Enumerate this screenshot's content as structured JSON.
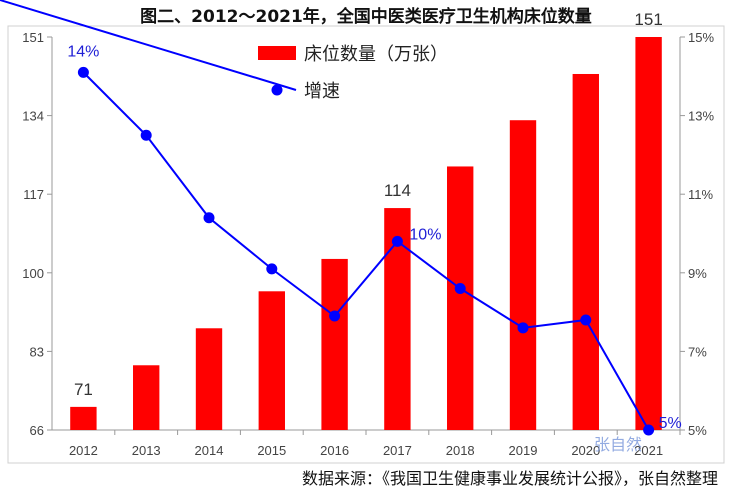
{
  "title": "图二、2012～2021年，全国中医类医疗卫生机构床位数量",
  "source": "数据来源：《我国卫生健康事业发展统计公报》，张自然整理",
  "watermark": "张自然",
  "colors": {
    "bar": "#ff0000",
    "line": "#0000ff",
    "axis": "#999999"
  },
  "chart_data": {
    "type": "bar+line",
    "categories": [
      "2012",
      "2013",
      "2014",
      "2015",
      "2016",
      "2017",
      "2018",
      "2019",
      "2020",
      "2021"
    ],
    "series": [
      {
        "name": "床位数量（万张）",
        "type": "bar",
        "axis": "left",
        "values": [
          71,
          80,
          88,
          96,
          103,
          114,
          123,
          133,
          143,
          151
        ]
      },
      {
        "name": "增速",
        "type": "line",
        "axis": "right",
        "marker": "circle",
        "values": [
          14.1,
          12.5,
          10.4,
          9.1,
          7.9,
          9.8,
          8.6,
          7.6,
          7.8,
          5.0
        ]
      }
    ],
    "y_left": {
      "min": 66,
      "max": 151,
      "ticks": [
        "66",
        "83",
        "100",
        "117",
        "134",
        "151"
      ]
    },
    "y_right": {
      "min": 5,
      "max": 15,
      "ticks": [
        "5%",
        "7%",
        "9%",
        "11%",
        "13%",
        "15%"
      ]
    },
    "data_labels": [
      {
        "series": 0,
        "index": 0,
        "text": "71"
      },
      {
        "series": 0,
        "index": 5,
        "text": "114"
      },
      {
        "series": 0,
        "index": 9,
        "text": "151"
      },
      {
        "series": 1,
        "index": 0,
        "text": "14%"
      },
      {
        "series": 1,
        "index": 5,
        "text": "10%"
      },
      {
        "series": 1,
        "index": 9,
        "text": "5%"
      }
    ],
    "legend_position": "top-center",
    "grid": false
  }
}
